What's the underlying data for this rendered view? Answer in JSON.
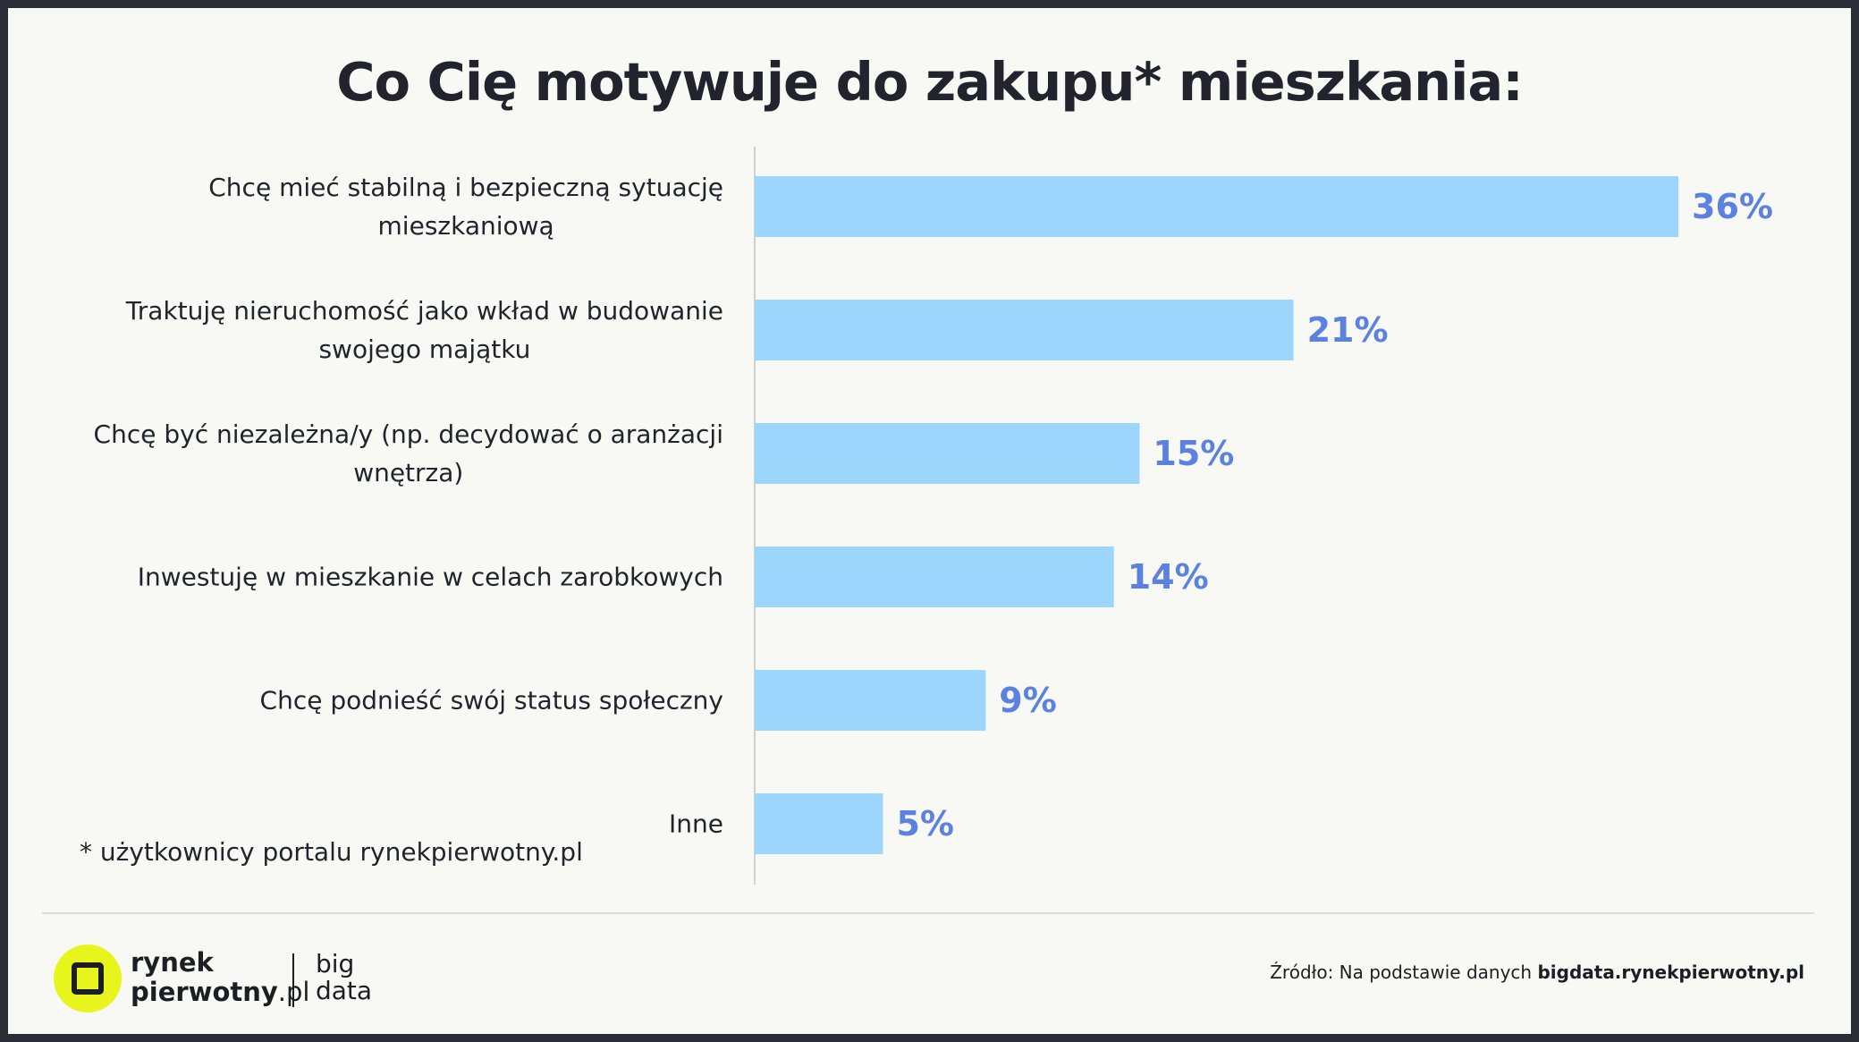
{
  "title": "Co Cię motywuje do zakupu* mieszkania:",
  "footnote": "* użytkownicy portalu rynekpierwotny.pl",
  "logo": {
    "rynek": "rynek",
    "pierwotny": "pierwotny",
    "pl": ".pl",
    "big": "big",
    "data": "data"
  },
  "source": {
    "prefix": "Źródło: Na podstawie danych ",
    "link": "bigdata.rynekpierwotny.pl"
  },
  "colors": {
    "bar": "#9dd6fc",
    "value": "#5b82e0",
    "text": "#22232c",
    "accent": "#e8f51d"
  },
  "chart_data": {
    "type": "bar",
    "orientation": "horizontal",
    "title": "Co Cię motywuje do zakupu* mieszkania:",
    "categories": [
      [
        "Chcę mieć stabilną i bezpieczną sytuację",
        "mieszkaniową"
      ],
      [
        "Traktuję nieruchomość jako wkład w budowanie",
        "swojego majątku"
      ],
      [
        "Chcę być niezależna/y (np. decydować o aranżacji",
        "wnętrza)"
      ],
      [
        "Inwestuję w mieszkanie w celach zarobkowych"
      ],
      [
        "Chcę podnieść swój status społeczny"
      ],
      [
        "Inne"
      ]
    ],
    "values": [
      36,
      21,
      15,
      14,
      9,
      5
    ],
    "labels": [
      "36%",
      "21%",
      "15%",
      "14%",
      "9%",
      "5%"
    ],
    "unit": "%",
    "xlim": [
      0,
      36
    ],
    "grid": false
  }
}
